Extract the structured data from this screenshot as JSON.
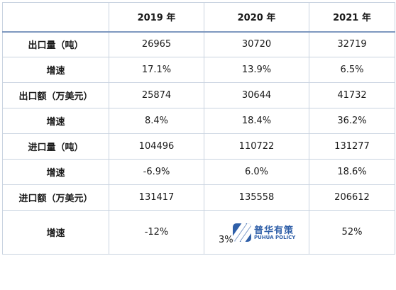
{
  "table": {
    "header": [
      "",
      "2019 年",
      "2020 年",
      "2021 年"
    ],
    "rows": [
      {
        "label": "出口量（吨）",
        "values": [
          "26965",
          "30720",
          "32719"
        ]
      },
      {
        "label": "增速",
        "values": [
          "17.1%",
          "13.9%",
          "6.5%"
        ]
      },
      {
        "label": "出口额（万美元）",
        "values": [
          "25874",
          "30644",
          "41732"
        ]
      },
      {
        "label": "增速",
        "values": [
          "8.4%",
          "18.4%",
          "36.2%"
        ]
      },
      {
        "label": "进口量（吨）",
        "values": [
          "104496",
          "110722",
          "131277"
        ]
      },
      {
        "label": "增速",
        "values": [
          "-6.9%",
          "6.0%",
          "18.6%"
        ]
      },
      {
        "label": "进口额（万美元）",
        "values": [
          "131417",
          "135558",
          "206612"
        ]
      },
      {
        "label": "增速",
        "values": [
          "-12%",
          "3%",
          "52%"
        ]
      }
    ]
  },
  "watermark": {
    "name_cn": "普华有策",
    "name_en": "PUHUA POLICY",
    "icon": "puhua-logo-icon",
    "color": "#2f5fa8"
  }
}
